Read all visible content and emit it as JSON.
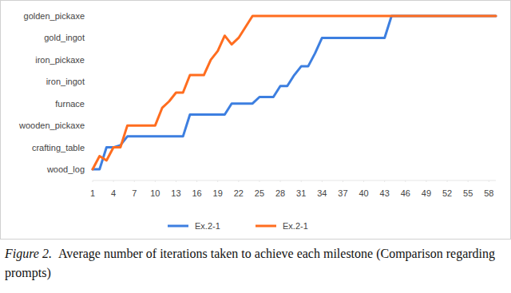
{
  "chart_data": {
    "type": "line",
    "caption_label": "Figure 2.",
    "caption": "Average number of iterations taken to achieve each milestone (Comparison regarding prompts)",
    "x": [
      1,
      2,
      3,
      4,
      5,
      6,
      7,
      8,
      9,
      10,
      11,
      12,
      13,
      14,
      15,
      16,
      17,
      18,
      19,
      20,
      21,
      22,
      23,
      24,
      25,
      26,
      27,
      28,
      29,
      30,
      31,
      32,
      33,
      34,
      35,
      36,
      37,
      38,
      39,
      40,
      41,
      42,
      43,
      44,
      45,
      46,
      47,
      48,
      49,
      50,
      51,
      52,
      53,
      54,
      55,
      56,
      57,
      58,
      59
    ],
    "series": [
      {
        "name": "Ex.2-1",
        "color": "#3d7fe0",
        "values": [
          0,
          0,
          1,
          1,
          1.1,
          1.5,
          1.5,
          1.5,
          1.5,
          1.5,
          1.5,
          1.5,
          1.5,
          1.5,
          2.5,
          2.5,
          2.5,
          2.5,
          2.5,
          2.5,
          3,
          3,
          3,
          3,
          3.3,
          3.3,
          3.3,
          3.8,
          3.8,
          4.3,
          4.7,
          4.7,
          5.3,
          6,
          6,
          6,
          6,
          6,
          6,
          6,
          6,
          6,
          6,
          7,
          7,
          7,
          7,
          7,
          7,
          7,
          7,
          7,
          7,
          7,
          7,
          7,
          7,
          7,
          7
        ]
      },
      {
        "name": "Ex.2-1",
        "color": "#ff6d1f",
        "values": [
          0,
          0.6,
          0.4,
          1,
          1,
          2,
          2,
          2,
          2,
          2,
          2.8,
          3.1,
          3.5,
          3.5,
          4.3,
          4.3,
          4.3,
          5,
          5.4,
          6.1,
          5.7,
          6,
          6.5,
          7,
          7,
          7,
          7,
          7,
          7,
          7,
          7,
          7,
          7,
          7,
          7,
          7,
          7,
          7,
          7,
          7,
          7,
          7,
          7,
          7,
          7,
          7,
          7,
          7,
          7,
          7,
          7,
          7,
          7,
          7,
          7,
          7,
          7,
          7,
          7
        ]
      }
    ],
    "xlim": [
      1,
      59
    ],
    "xticks": [
      1,
      4,
      7,
      10,
      13,
      16,
      19,
      22,
      25,
      28,
      31,
      34,
      37,
      40,
      43,
      46,
      49,
      52,
      55,
      58
    ],
    "ylim": [
      0,
      7
    ],
    "yticks": [
      {
        "value": 0,
        "label": "wood_log"
      },
      {
        "value": 1,
        "label": "crafting_table"
      },
      {
        "value": 2,
        "label": "wooden_pickaxe"
      },
      {
        "value": 3,
        "label": "furnace"
      },
      {
        "value": 4,
        "label": "iron_ingot"
      },
      {
        "value": 5,
        "label": "iron_pickaxe"
      },
      {
        "value": 6,
        "label": "gold_ingot"
      },
      {
        "value": 7,
        "label": "golden_pickaxe"
      }
    ],
    "grid": false,
    "legend": "bottom"
  }
}
